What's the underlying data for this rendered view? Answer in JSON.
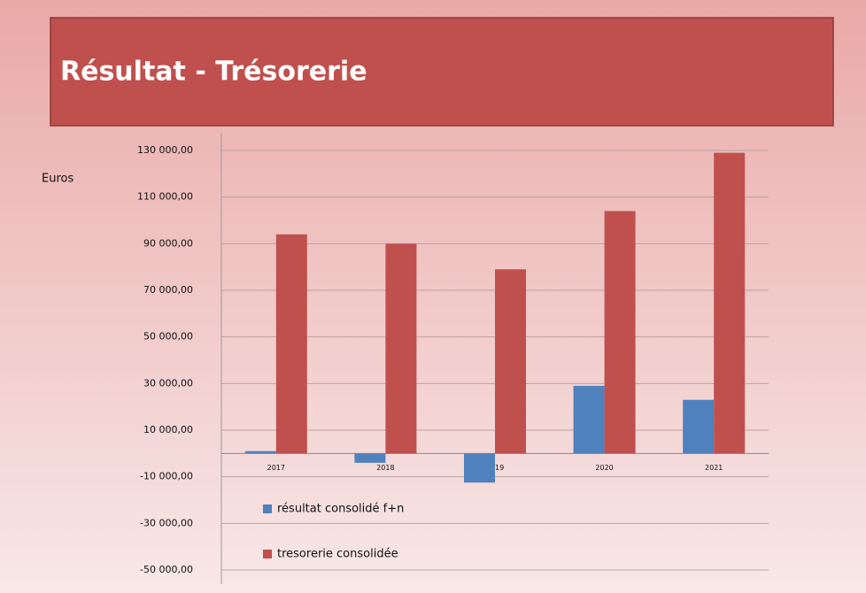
{
  "chart_data": {
    "type": "bar",
    "title": "Résultat -  Trésorerie",
    "y_label": "Euros",
    "categories": [
      "2017",
      "2018",
      "2019",
      "2020",
      "2021"
    ],
    "series": [
      {
        "name": "résultat consolidé f+n",
        "color": "#4f81bd",
        "values": [
          1000,
          -4000,
          -12500,
          29000,
          23000
        ]
      },
      {
        "name": "tresorerie consolidée",
        "color": "#c0504d",
        "values": [
          94000,
          90000,
          79000,
          104000,
          129000
        ]
      }
    ],
    "ylim": [
      -50000,
      130000
    ],
    "yticks": [
      {
        "value": -50000,
        "label": "-50 000,00"
      },
      {
        "value": -30000,
        "label": "-30 000,00"
      },
      {
        "value": -10000,
        "label": "-10 000,00"
      },
      {
        "value": 10000,
        "label": "10 000,00"
      },
      {
        "value": 30000,
        "label": "30 000,00"
      },
      {
        "value": 50000,
        "label": "50 000,00"
      },
      {
        "value": 70000,
        "label": "70 000,00"
      },
      {
        "value": 90000,
        "label": "90 000,00"
      },
      {
        "value": 110000,
        "label": "110 000,00"
      },
      {
        "value": 130000,
        "label": "130 000,00"
      }
    ],
    "grid": true,
    "legend": "lower left"
  }
}
